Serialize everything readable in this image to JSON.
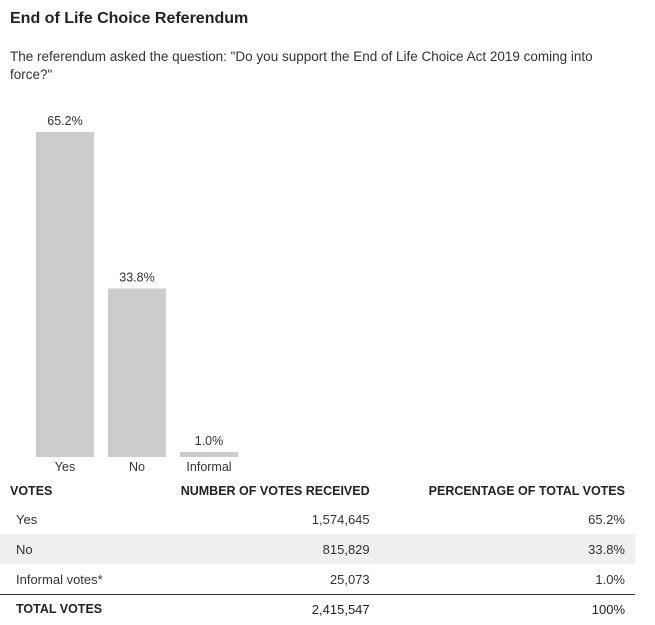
{
  "title": "End of Life Choice Referendum",
  "subtitle": "The referendum asked the question: \"Do you support the End of Life Choice Act 2019 coming into force?\"",
  "chart_data": {
    "type": "bar",
    "categories": [
      "Yes",
      "No",
      "Informal"
    ],
    "values": [
      65.2,
      33.8,
      1.0
    ],
    "data_labels": [
      "65.2%",
      "33.8%",
      "1.0%"
    ],
    "ylim": [
      0,
      65.2
    ],
    "bar_color": "#cccccc",
    "grid": false,
    "legend": "none"
  },
  "table": {
    "headers": [
      "VOTES",
      "NUMBER OF VOTES RECEIVED",
      "PERCENTAGE OF TOTAL VOTES"
    ],
    "rows": [
      [
        "Yes",
        "1,574,645",
        "65.2%"
      ],
      [
        "No",
        "815,829",
        "33.8%"
      ],
      [
        "Informal votes*",
        "25,073",
        "1.0%"
      ]
    ],
    "total": [
      "TOTAL VOTES",
      "2,415,547",
      "100%"
    ],
    "shade_color": "#efefef"
  }
}
